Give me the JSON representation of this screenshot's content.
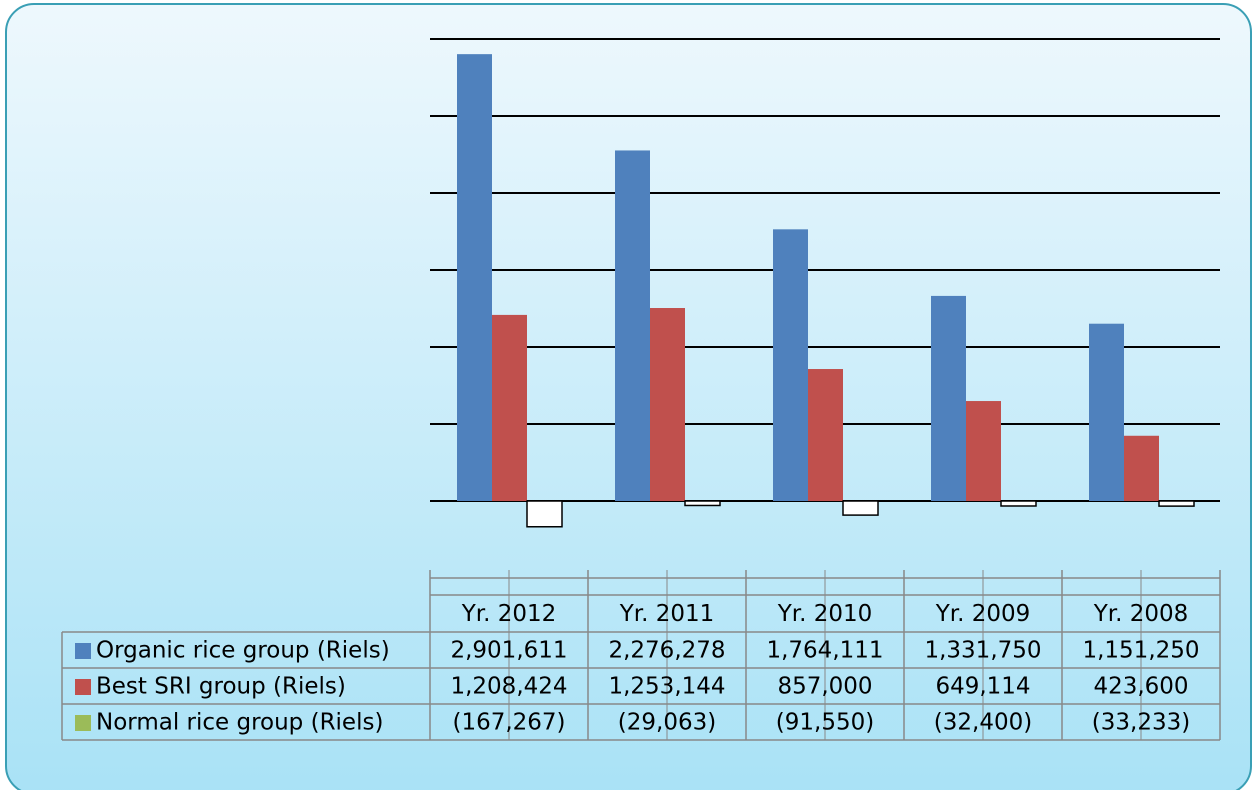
{
  "chart_data": {
    "type": "bar",
    "categories": [
      "Yr. 2012",
      "Yr. 2011",
      "Yr. 2010",
      "Yr. 2009",
      "Yr. 2008"
    ],
    "series": [
      {
        "name": "Organic rice group (Riels)",
        "color": "#4f81bd",
        "values": [
          2901611,
          2276278,
          1764111,
          1331750,
          1151250
        ],
        "value_labels": [
          "2,901,611",
          "2,276,278",
          "1,764,111",
          "1,331,750",
          "1,151,250"
        ]
      },
      {
        "name": "Best SRI group (Riels)",
        "color": "#c0504d",
        "values": [
          1208424,
          1253144,
          857000,
          649114,
          423600
        ],
        "value_labels": [
          "1,208,424",
          "1,253,144",
          "857,000",
          "649,114",
          "423,600"
        ]
      },
      {
        "name": "Normal rice group (Riels)",
        "color": "#9bbb59",
        "fill": "#ffffff",
        "values": [
          -167267,
          -29063,
          -91550,
          -32400,
          -33233
        ],
        "value_labels": [
          "(167,267)",
          "(29,063)",
          "(91,550)",
          "(32,400)",
          "(33,233)"
        ]
      }
    ],
    "ylim": [
      -500000,
      3000000
    ],
    "yticks": [
      0,
      500000,
      1000000,
      1500000,
      2000000,
      2500000,
      3000000
    ],
    "grid": true
  }
}
